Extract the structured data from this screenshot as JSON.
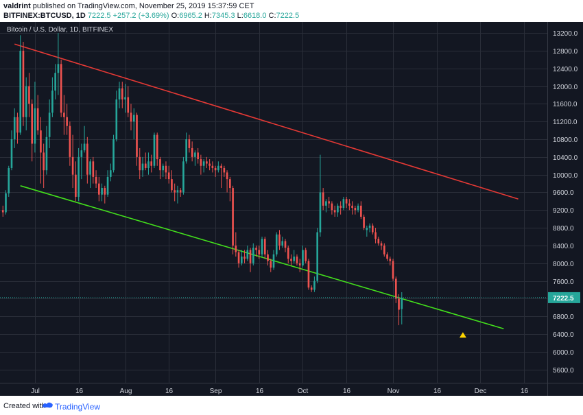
{
  "header": {
    "author": "valdrint",
    "published_text": "published on TradingView.com, November 25, 2019 15:37:59 CET",
    "symbol": "BITFINEX:BTCUSD, 1D",
    "last": "7222.5",
    "change": "+257.2 (+3.69%)",
    "o_label": "O:",
    "o_value": "6965.2",
    "h_label": "H:",
    "h_value": "7345.3",
    "l_label": "L:",
    "l_value": "6618.0",
    "c_label": "C:",
    "c_value": "7222.5"
  },
  "footer": {
    "created_with": "Created with",
    "brand": "TradingView"
  },
  "colors": {
    "background": "#131722",
    "grid": "#2a2e39",
    "up": "#26a69a",
    "down": "#ef5350",
    "resistance": "#e53935",
    "support": "#43e01c",
    "marker": "#ffd600",
    "axis_text": "#d1d4dc",
    "price_line": "#26a69a"
  },
  "chart_data": {
    "type": "candlestick",
    "title": "Bitcoin / U.S. Dollar, 1D, BITFINEX",
    "x_labels": [
      "Jul",
      "16",
      "Aug",
      "16",
      "Sep",
      "16",
      "Oct",
      "16",
      "Nov",
      "16",
      "Dec",
      "16"
    ],
    "x_label_dates": [
      "2019-07-01",
      "2019-07-16",
      "2019-08-01",
      "2019-08-16",
      "2019-09-01",
      "2019-09-16",
      "2019-10-01",
      "2019-10-16",
      "2019-11-01",
      "2019-11-16",
      "2019-12-01",
      "2019-12-16"
    ],
    "y_ticks": [
      5600,
      6000,
      6400,
      6800,
      7200,
      7600,
      8000,
      8400,
      8800,
      9200,
      9600,
      10000,
      10400,
      10800,
      11200,
      11600,
      12000,
      12400,
      12800,
      13200
    ],
    "y_tick_labels": [
      "5600.0",
      "6000.0",
      "6400.0",
      "6800.0",
      "7200.0",
      "7600.0",
      "8000.0",
      "8400.0",
      "8800.0",
      "9200.0",
      "9600.0",
      "10000.0",
      "10400.0",
      "10800.0",
      "11200.0",
      "11600.0",
      "12000.0",
      "12400.0",
      "12800.0",
      "13200.0"
    ],
    "ylim": [
      5300,
      13450
    ],
    "x_range": [
      "2019-06-19",
      "2019-12-24"
    ],
    "last_price": 7222.5,
    "last_price_label": "7222.5",
    "start_date": "2019-06-20",
    "candles": [
      [
        9200,
        9300,
        9050,
        9150
      ],
      [
        9150,
        9650,
        9100,
        9580
      ],
      [
        9580,
        10200,
        9500,
        10150
      ],
      [
        10150,
        11000,
        10100,
        10800
      ],
      [
        10800,
        11500,
        10600,
        11300
      ],
      [
        11300,
        11400,
        10700,
        10950
      ],
      [
        10950,
        13150,
        10900,
        12800
      ],
      [
        12800,
        13000,
        11100,
        11300
      ],
      [
        11300,
        12200,
        11000,
        12000
      ],
      [
        12000,
        12300,
        11300,
        11600
      ],
      [
        11600,
        11700,
        10300,
        10700
      ],
      [
        10700,
        12100,
        10500,
        11500
      ],
      [
        11500,
        11800,
        10900,
        11000
      ],
      [
        11000,
        11300,
        9800,
        10500
      ],
      [
        10500,
        10700,
        9700,
        10100
      ],
      [
        10100,
        11100,
        10000,
        10850
      ],
      [
        10850,
        11700,
        10600,
        11400
      ],
      [
        11400,
        12200,
        11300,
        11900
      ],
      [
        11900,
        12500,
        11700,
        12300
      ],
      [
        12300,
        13200,
        11800,
        12500
      ],
      [
        12500,
        12600,
        11300,
        11400
      ],
      [
        11400,
        11800,
        10900,
        11300
      ],
      [
        11300,
        11600,
        10900,
        11100
      ],
      [
        11100,
        11200,
        10200,
        10400
      ],
      [
        10400,
        10900,
        9700,
        10000
      ],
      [
        10000,
        10300,
        9400,
        9500
      ],
      [
        9500,
        10600,
        9400,
        10400
      ],
      [
        10400,
        10700,
        9900,
        10550
      ],
      [
        10550,
        11100,
        10500,
        10700
      ],
      [
        10700,
        10850,
        9800,
        10000
      ],
      [
        10000,
        10350,
        9700,
        10300
      ],
      [
        10300,
        10400,
        9800,
        9950
      ],
      [
        9950,
        10100,
        9700,
        9800
      ],
      [
        9800,
        9950,
        9400,
        9550
      ],
      [
        9550,
        9800,
        9400,
        9700
      ],
      [
        9700,
        9750,
        9350,
        9550
      ],
      [
        9550,
        10100,
        9500,
        9950
      ],
      [
        9950,
        10250,
        9850,
        10100
      ],
      [
        10100,
        10900,
        10050,
        10800
      ],
      [
        10800,
        11900,
        10750,
        11700
      ],
      [
        11700,
        12100,
        11500,
        11950
      ],
      [
        11950,
        12100,
        11500,
        11700
      ],
      [
        11700,
        12050,
        11400,
        11750
      ],
      [
        11750,
        12000,
        11300,
        11400
      ],
      [
        11400,
        11600,
        11000,
        11200
      ],
      [
        11200,
        11500,
        10800,
        11350
      ],
      [
        11350,
        11400,
        10200,
        10400
      ],
      [
        10400,
        10600,
        9900,
        10100
      ],
      [
        10100,
        10400,
        9950,
        10250
      ],
      [
        10250,
        10500,
        10100,
        10150
      ],
      [
        10150,
        10500,
        10000,
        10300
      ],
      [
        10300,
        10450,
        10050,
        10200
      ],
      [
        10200,
        10950,
        10150,
        10900
      ],
      [
        10900,
        10950,
        10200,
        10350
      ],
      [
        10350,
        10400,
        9900,
        10100
      ],
      [
        10100,
        10250,
        9950,
        10200
      ],
      [
        10200,
        10300,
        9900,
        10050
      ],
      [
        10050,
        10200,
        9800,
        9900
      ],
      [
        9900,
        10100,
        9600,
        9650
      ],
      [
        9650,
        9800,
        9400,
        9600
      ],
      [
        9600,
        9750,
        9350,
        9650
      ],
      [
        9650,
        9700,
        9500,
        9600
      ],
      [
        9600,
        10400,
        9550,
        10300
      ],
      [
        10300,
        10950,
        10250,
        10800
      ],
      [
        10800,
        10900,
        10500,
        10600
      ],
      [
        10600,
        10750,
        10300,
        10400
      ],
      [
        10400,
        10550,
        10200,
        10500
      ],
      [
        10500,
        10600,
        10250,
        10350
      ],
      [
        10350,
        10450,
        10000,
        10200
      ],
      [
        10200,
        10350,
        10050,
        10300
      ],
      [
        10300,
        10400,
        10150,
        10250
      ],
      [
        10250,
        10350,
        10100,
        10200
      ],
      [
        10200,
        10300,
        10050,
        10150
      ],
      [
        10150,
        10200,
        9950,
        10100
      ],
      [
        10100,
        10300,
        10050,
        10200
      ],
      [
        10200,
        10250,
        9700,
        10150
      ],
      [
        10150,
        10200,
        9950,
        10050
      ],
      [
        10050,
        10100,
        9600,
        9900
      ],
      [
        9900,
        9950,
        9400,
        9700
      ],
      [
        9700,
        9750,
        8200,
        8400
      ],
      [
        8400,
        8700,
        8150,
        8250
      ],
      [
        8250,
        8300,
        7900,
        8000
      ],
      [
        8000,
        8300,
        7950,
        8150
      ],
      [
        8150,
        8300,
        8000,
        8100
      ],
      [
        8100,
        8400,
        8050,
        8300
      ],
      [
        8300,
        8350,
        7800,
        8000
      ],
      [
        8000,
        8450,
        7950,
        8350
      ],
      [
        8350,
        8400,
        8150,
        8300
      ],
      [
        8300,
        8400,
        8100,
        8200
      ],
      [
        8200,
        8600,
        8150,
        8550
      ],
      [
        8550,
        8600,
        8100,
        8200
      ],
      [
        8200,
        8300,
        7950,
        8050
      ],
      [
        8050,
        8100,
        7800,
        7900
      ],
      [
        7900,
        8300,
        7850,
        8200
      ],
      [
        8200,
        8700,
        8150,
        8650
      ],
      [
        8650,
        8750,
        8300,
        8400
      ],
      [
        8400,
        8600,
        8350,
        8500
      ],
      [
        8500,
        8550,
        8250,
        8350
      ],
      [
        8350,
        8400,
        8000,
        8100
      ],
      [
        8100,
        8200,
        7950,
        8050
      ],
      [
        8050,
        8300,
        8000,
        8150
      ],
      [
        8150,
        8200,
        7950,
        8000
      ],
      [
        8000,
        8100,
        7800,
        7950
      ],
      [
        7950,
        8400,
        7900,
        8300
      ],
      [
        8300,
        8350,
        8000,
        8050
      ],
      [
        8050,
        8100,
        7400,
        7450
      ],
      [
        7450,
        7500,
        7350,
        7400
      ],
      [
        7400,
        7700,
        7350,
        7600
      ],
      [
        7600,
        8800,
        7550,
        8700
      ],
      [
        8700,
        10450,
        8600,
        9600
      ],
      [
        9600,
        9700,
        9200,
        9300
      ],
      [
        9300,
        9450,
        9150,
        9400
      ],
      [
        9400,
        9500,
        9250,
        9350
      ],
      [
        9350,
        9400,
        9100,
        9200
      ],
      [
        9200,
        9300,
        9050,
        9150
      ],
      [
        9150,
        9350,
        9050,
        9300
      ],
      [
        9300,
        9400,
        9100,
        9250
      ],
      [
        9250,
        9500,
        9200,
        9450
      ],
      [
        9450,
        9500,
        9250,
        9350
      ],
      [
        9350,
        9450,
        9200,
        9300
      ],
      [
        9300,
        9400,
        9100,
        9250
      ],
      [
        9250,
        9300,
        9100,
        9200
      ],
      [
        9200,
        9350,
        9150,
        9300
      ],
      [
        9300,
        9400,
        9000,
        9050
      ],
      [
        9050,
        9100,
        8750,
        8800
      ],
      [
        8750,
        8850,
        8600,
        8800
      ],
      [
        8800,
        8900,
        8700,
        8850
      ],
      [
        8850,
        8900,
        8650,
        8700
      ],
      [
        8700,
        8800,
        8450,
        8550
      ],
      [
        8550,
        8600,
        8400,
        8450
      ],
      [
        8450,
        8500,
        8300,
        8400
      ],
      [
        8400,
        8450,
        8150,
        8200
      ],
      [
        8200,
        8250,
        8050,
        8100
      ],
      [
        8100,
        8150,
        7950,
        8050
      ],
      [
        8050,
        8100,
        7600,
        7650
      ],
      [
        7650,
        7700,
        7100,
        7200
      ],
      [
        7200,
        7300,
        6600,
        6950
      ],
      [
        6965.2,
        7345.3,
        6618,
        7222.5
      ]
    ],
    "trendlines": [
      {
        "name": "resistance",
        "from": [
          "2019-06-24",
          12950
        ],
        "to": [
          "2019-12-14",
          9450
        ]
      },
      {
        "name": "support",
        "from": [
          "2019-06-26",
          9750
        ],
        "to": [
          "2019-12-09",
          6520
        ]
      }
    ],
    "marker": {
      "date": "2019-11-25",
      "price": 6380
    },
    "grid": true
  }
}
